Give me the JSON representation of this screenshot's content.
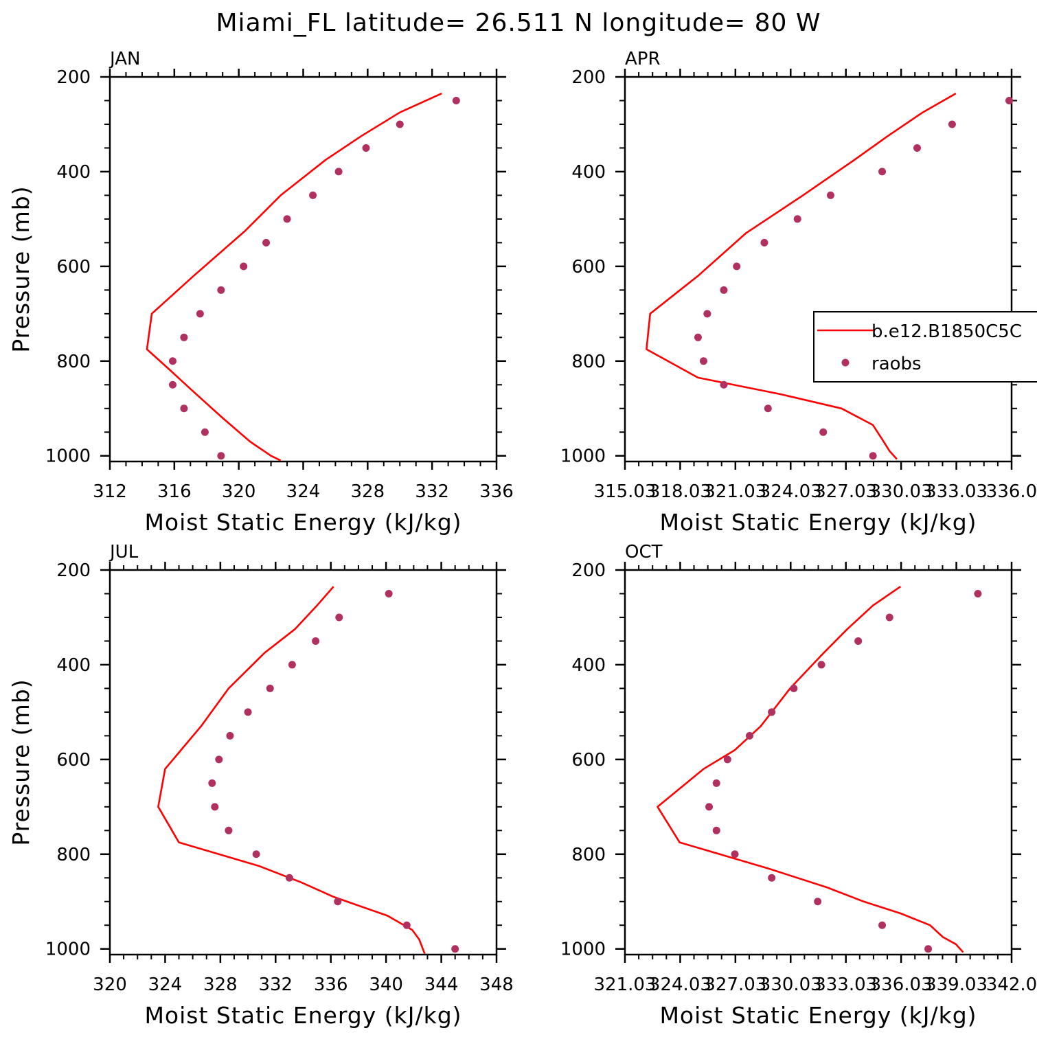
{
  "title": "Miami_FL  latitude= 26.511 N longitude= 80 W",
  "legend": {
    "model_label": "b.e12.B1850C5C",
    "obs_label": "raobs"
  },
  "colors": {
    "model": "#ff0000",
    "obs": "#b03060"
  },
  "chart_data": [
    {
      "type": "line",
      "panel": "JAN",
      "xlabel": "Moist Static Energy (kJ/kg)",
      "ylabel": "Pressure (mb)",
      "xlim": [
        312,
        336
      ],
      "xticks": [
        312,
        316,
        320,
        324,
        328,
        332,
        336
      ],
      "xtick_labels": [
        "312",
        "316",
        "320",
        "324",
        "328",
        "332",
        "336"
      ],
      "ylim": [
        200,
        1012
      ],
      "yticks": [
        200,
        400,
        600,
        800,
        1000
      ],
      "ytick_labels": [
        "200",
        "400",
        "600",
        "800",
        "1000"
      ],
      "model": {
        "pressure": [
          235,
          275,
          325,
          375,
          450,
          525,
          620,
          700,
          775,
          815,
          865,
          920,
          970,
          1000,
          1010
        ],
        "mse": [
          332.6,
          330.0,
          327.6,
          325.4,
          322.6,
          320.4,
          317.2,
          314.6,
          314.3,
          315.6,
          317.2,
          319.0,
          320.7,
          322.0,
          322.6
        ]
      },
      "obs": {
        "pressure": [
          250,
          300,
          350,
          400,
          450,
          500,
          550,
          600,
          650,
          700,
          750,
          800,
          850,
          900,
          950,
          1000
        ],
        "mse": [
          333.5,
          330.0,
          327.9,
          326.2,
          324.6,
          323.0,
          321.7,
          320.3,
          318.9,
          317.6,
          316.6,
          315.9,
          315.9,
          316.6,
          317.9,
          318.9
        ]
      }
    },
    {
      "type": "line",
      "panel": "APR",
      "xlabel": "Moist Static Energy (kJ/kg)",
      "ylabel": "",
      "xlim": [
        315.03,
        336.03
      ],
      "xticks": [
        315.03,
        318.03,
        321.03,
        324.03,
        327.03,
        330.03,
        333.03,
        336.03
      ],
      "xtick_labels": [
        "315.03",
        "318.03",
        "321.03",
        "324.03",
        "327.03",
        "330.03",
        "333.03",
        "336.0"
      ],
      "ylim": [
        200,
        1012
      ],
      "yticks": [
        200,
        400,
        600,
        800,
        1000
      ],
      "ytick_labels": [
        "200",
        "400",
        "600",
        "800",
        "1000"
      ],
      "model": {
        "pressure": [
          235,
          275,
          325,
          375,
          450,
          530,
          620,
          700,
          775,
          835,
          870,
          900,
          935,
          965,
          990,
          1007
        ],
        "mse": [
          333.0,
          331.2,
          329.3,
          327.5,
          324.7,
          321.6,
          319.0,
          316.4,
          316.2,
          319.0,
          323.5,
          326.8,
          328.5,
          329.0,
          329.4,
          329.8
        ]
      },
      "obs": {
        "pressure": [
          250,
          300,
          350,
          400,
          450,
          500,
          550,
          600,
          650,
          700,
          750,
          800,
          850,
          900,
          950,
          1000
        ],
        "mse": [
          335.9,
          332.8,
          330.9,
          329.0,
          326.2,
          324.4,
          322.6,
          321.1,
          320.4,
          319.5,
          319.0,
          319.3,
          320.4,
          322.8,
          325.8,
          328.5
        ]
      }
    },
    {
      "type": "line",
      "panel": "JUL",
      "xlabel": "Moist Static Energy (kJ/kg)",
      "ylabel": "Pressure (mb)",
      "xlim": [
        320,
        348
      ],
      "xticks": [
        320,
        324,
        328,
        332,
        336,
        340,
        344,
        348
      ],
      "xtick_labels": [
        "320",
        "324",
        "328",
        "332",
        "336",
        "340",
        "344",
        "348"
      ],
      "ylim": [
        200,
        1012
      ],
      "yticks": [
        200,
        400,
        600,
        800,
        1000
      ],
      "ytick_labels": [
        "200",
        "400",
        "600",
        "800",
        "1000"
      ],
      "model": {
        "pressure": [
          235,
          275,
          325,
          375,
          450,
          530,
          620,
          700,
          775,
          825,
          860,
          890,
          930,
          960,
          980,
          995,
          1010
        ],
        "mse": [
          336.2,
          335.0,
          333.4,
          331.2,
          328.6,
          326.6,
          324.0,
          323.5,
          325.0,
          330.8,
          333.9,
          336.2,
          340.1,
          341.9,
          342.4,
          342.6,
          342.8
        ]
      },
      "obs": {
        "pressure": [
          250,
          300,
          350,
          400,
          450,
          500,
          550,
          600,
          650,
          700,
          750,
          800,
          850,
          900,
          950,
          1000
        ],
        "mse": [
          340.2,
          336.6,
          334.9,
          333.2,
          331.6,
          330.0,
          328.7,
          327.9,
          327.4,
          327.6,
          328.6,
          330.6,
          333.0,
          336.5,
          341.5,
          345.0
        ]
      }
    },
    {
      "type": "line",
      "panel": "OCT",
      "xlabel": "Moist Static Energy (kJ/kg)",
      "ylabel": "",
      "xlim": [
        321.03,
        342.03
      ],
      "xticks": [
        321.03,
        324.03,
        327.03,
        330.03,
        333.03,
        336.03,
        339.03,
        342.03
      ],
      "xtick_labels": [
        "321.03",
        "324.03",
        "327.03",
        "330.03",
        "333.03",
        "336.03",
        "339.03",
        "342.0"
      ],
      "ylim": [
        200,
        1012
      ],
      "yticks": [
        200,
        400,
        600,
        800,
        1000
      ],
      "ytick_labels": [
        "200",
        "400",
        "600",
        "800",
        "1000"
      ],
      "model": {
        "pressure": [
          235,
          275,
          325,
          380,
          450,
          530,
          580,
          620,
          700,
          775,
          830,
          870,
          900,
          925,
          950,
          975,
          990,
          1007
        ],
        "mse": [
          336.0,
          334.5,
          333.1,
          331.7,
          330.0,
          328.4,
          327.0,
          325.3,
          322.8,
          324.0,
          328.8,
          332.0,
          334.0,
          336.0,
          337.6,
          338.3,
          339.0,
          339.4
        ]
      },
      "obs": {
        "pressure": [
          250,
          300,
          350,
          400,
          450,
          500,
          550,
          600,
          650,
          700,
          750,
          800,
          850,
          900,
          950,
          1000
        ],
        "mse": [
          340.2,
          335.4,
          333.7,
          331.7,
          330.2,
          329.0,
          327.8,
          326.6,
          326.0,
          325.6,
          326.0,
          327.0,
          329.0,
          331.5,
          335.0,
          337.5
        ]
      }
    }
  ]
}
